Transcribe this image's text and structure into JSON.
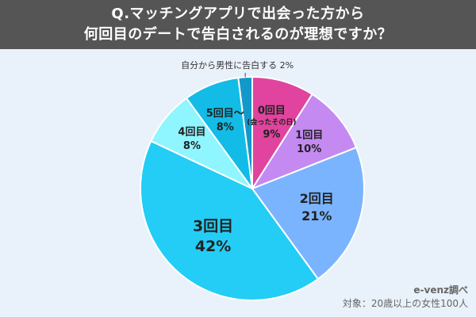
{
  "header": {
    "line1": "Q.マッチングアプリで出会った方から",
    "line2": "何回目のデートで告白されるのが理想ですか？"
  },
  "source": {
    "org": "e-venz調べ",
    "target": "対象：20歳以上の女性100人"
  },
  "colors": {
    "banner": "#555555",
    "background": "#e9f1fa"
  },
  "chart_data": {
    "type": "pie",
    "title": "",
    "start": "12 o'clock, clockwise",
    "slices": [
      {
        "label": "0回目",
        "sublabel": "(会ったその日)",
        "value": 9,
        "display": "9%",
        "color": "#e0449e"
      },
      {
        "label": "1回目",
        "sublabel": "",
        "value": 10,
        "display": "10%",
        "color": "#c48af2"
      },
      {
        "label": "2回目",
        "sublabel": "",
        "value": 21,
        "display": "21%",
        "color": "#7ab4ff"
      },
      {
        "label": "3回目",
        "sublabel": "",
        "value": 42,
        "display": "42%",
        "color": "#23cdf5"
      },
      {
        "label": "4回目",
        "sublabel": "",
        "value": 8,
        "display": "8%",
        "color": "#8ff5ff"
      },
      {
        "label": "5回目～",
        "sublabel": "",
        "value": 8,
        "display": "8%",
        "color": "#12bce6"
      },
      {
        "label": "自分から男性に告白する",
        "sublabel": "",
        "value": 2,
        "display": "2%",
        "color": "#1498c9",
        "callout": true
      }
    ]
  }
}
